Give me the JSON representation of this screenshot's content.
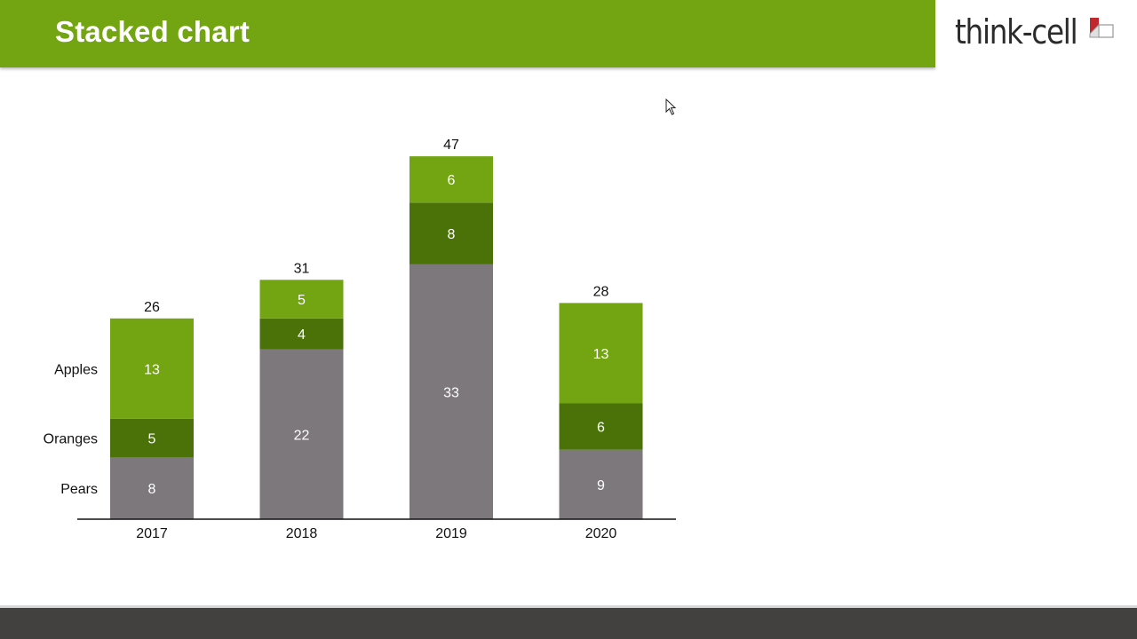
{
  "slide": {
    "title": "Stacked chart",
    "logo_text": "think-cell"
  },
  "colors": {
    "header": "#72a511",
    "apples": "#72a511",
    "oranges": "#4a7209",
    "pears": "#7c787c",
    "footer": "#434040"
  },
  "chart_data": {
    "type": "bar",
    "stacked": true,
    "title": "",
    "xlabel": "",
    "ylabel": "",
    "categories": [
      "2017",
      "2018",
      "2019",
      "2020"
    ],
    "series": [
      {
        "name": "Pears",
        "values": [
          8,
          22,
          33,
          9
        ],
        "color": "#7c787c"
      },
      {
        "name": "Oranges",
        "values": [
          5,
          4,
          8,
          6
        ],
        "color": "#4a7209"
      },
      {
        "name": "Apples",
        "values": [
          13,
          5,
          6,
          13
        ],
        "color": "#72a511"
      }
    ],
    "totals": [
      26,
      31,
      47,
      28
    ],
    "ylim": [
      0,
      47
    ],
    "grid": false,
    "legend": "left, series labels beside first column"
  }
}
